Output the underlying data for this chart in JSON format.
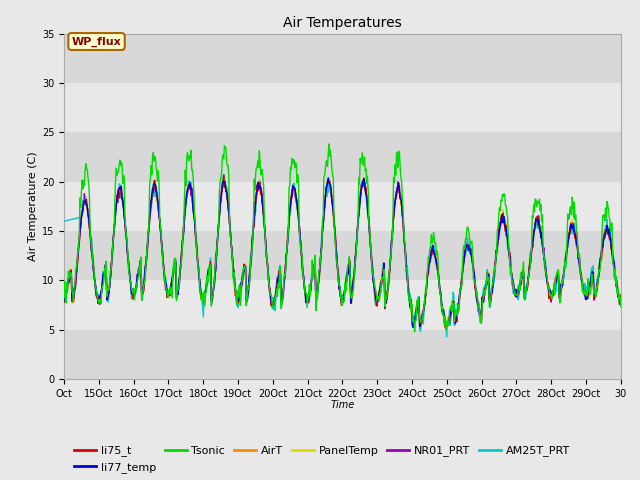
{
  "title": "Air Temperatures",
  "xlabel": "Time",
  "ylabel": "Air Temperature (C)",
  "ylim": [
    0,
    35
  ],
  "xlim": [
    0,
    16
  ],
  "x_tick_labels": [
    "Oct",
    "15Oct",
    "16Oct",
    "17Oct",
    "18Oct",
    "19Oct",
    "20Oct",
    "21Oct",
    "22Oct",
    "23Oct",
    "24Oct",
    "25Oct",
    "26Oct",
    "27Oct",
    "28Oct",
    "29Oct",
    "30"
  ],
  "x_tick_positions": [
    0,
    1,
    2,
    3,
    4,
    5,
    6,
    7,
    8,
    9,
    10,
    11,
    12,
    13,
    14,
    15,
    16
  ],
  "y_tick_positions": [
    0,
    5,
    10,
    15,
    20,
    25,
    30,
    35
  ],
  "series_colors": {
    "li75_t": "#dd0000",
    "li77_temp": "#0000dd",
    "Tsonic": "#00dd00",
    "AirT": "#ff8800",
    "PanelTemp": "#dddd00",
    "NR01_PRT": "#9900bb",
    "AM25T_PRT": "#00cccc"
  },
  "annotation_text": "WP_flux",
  "annotation_facecolor": "#ffffcc",
  "annotation_edgecolor": "#aa6600",
  "annotation_textcolor": "#880000",
  "fig_facecolor": "#e8e8e8",
  "plot_facecolor": "#e8e8e8",
  "grid_color": "#ffffff",
  "linewidth": 1.0,
  "legend_fontsize": 8,
  "title_fontsize": 10,
  "axis_fontsize": 7,
  "ylabel_fontsize": 8,
  "band_colors": [
    "#d8d8d8",
    "#e8e8e8"
  ],
  "band_ranges": [
    [
      0,
      5
    ],
    [
      5,
      10
    ],
    [
      10,
      15
    ],
    [
      15,
      20
    ],
    [
      20,
      25
    ],
    [
      25,
      30
    ],
    [
      30,
      35
    ]
  ]
}
